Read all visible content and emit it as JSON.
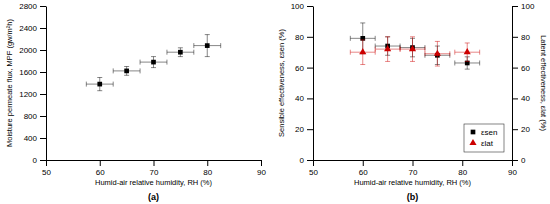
{
  "chart_data": [
    {
      "type": "scatter",
      "title": "(a)",
      "x_label": "Humid-air relative humidity, RH (%)",
      "y_label": "Moisture permeate flux, MPF (gw/m²h)",
      "xlim": [
        50,
        90
      ],
      "ylim": [
        0,
        2800
      ],
      "xticks": [
        50,
        60,
        70,
        80,
        90
      ],
      "yticks": [
        0,
        400,
        800,
        1200,
        1600,
        2000,
        2400,
        2800
      ],
      "grid": false,
      "series": [
        {
          "color": "#000000",
          "marker": "square",
          "x": [
            60,
            65,
            70,
            75,
            80
          ],
          "values": [
            1380,
            1620,
            1780,
            1960,
            2080
          ],
          "xerr": [
            2.5,
            2.5,
            2.5,
            2.5,
            2.5
          ],
          "yerr": [
            120,
            80,
            100,
            80,
            200
          ]
        }
      ]
    },
    {
      "type": "scatter",
      "title": "(b)",
      "x_label": "Humid-air relative humidity, RH (%)",
      "y_label": "Sensible effectiveness, εsen (%)",
      "y2_label": "Latent effectiveness, εlat (%)",
      "xlim": [
        50,
        90
      ],
      "ylim": [
        0,
        100
      ],
      "xticks": [
        50,
        60,
        70,
        80,
        90
      ],
      "yticks": [
        0,
        20,
        40,
        60,
        80,
        100
      ],
      "y2lim": [
        0,
        100
      ],
      "y2ticks": [
        0,
        20,
        40,
        60,
        80,
        100
      ],
      "grid": false,
      "legend": "lower right",
      "series": [
        {
          "name": "εsen",
          "color": "#000000",
          "marker": "square",
          "x": [
            60,
            65,
            70,
            75,
            81
          ],
          "values": [
            79,
            74,
            73,
            68,
            63
          ],
          "xerr": [
            2.5,
            2.5,
            2.5,
            2.5,
            2.5
          ],
          "yerr": [
            10,
            6,
            6,
            6,
            4
          ]
        },
        {
          "name": "εlat",
          "color": "#cc0000",
          "marker": "triangle",
          "axis": "y2",
          "x": [
            60,
            65,
            70,
            75,
            81
          ],
          "values": [
            70,
            72,
            72,
            69,
            70
          ],
          "xerr": [
            2.5,
            2.5,
            2.5,
            2.5,
            2.5
          ],
          "yerr": [
            8,
            8,
            8,
            8,
            6
          ]
        }
      ]
    }
  ]
}
